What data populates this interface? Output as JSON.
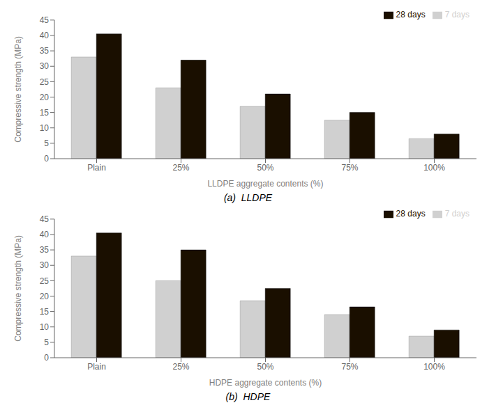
{
  "chart_data": [
    {
      "type": "bar",
      "title": "(a)  LLDPE",
      "categories": [
        "Plain",
        "25%",
        "50%",
        "75%",
        "100%"
      ],
      "series": [
        {
          "name": "7 days",
          "color": "#d0d0d0",
          "values": [
            33,
            23,
            17,
            12.5,
            6.5
          ]
        },
        {
          "name": "28 days",
          "color": "#1a0f00",
          "values": [
            40.5,
            32,
            21,
            15,
            8
          ]
        }
      ],
      "xlabel": "LLDPE aggregate contents (%)",
      "ylabel": "Compressive strength (MPa)",
      "ylim": [
        0,
        45
      ],
      "yticks": [
        0,
        5,
        10,
        15,
        20,
        25,
        30,
        35,
        40,
        45
      ],
      "grid": false,
      "legend": "upper right"
    },
    {
      "type": "bar",
      "title": "(b)  HDPE",
      "categories": [
        "Plain",
        "25%",
        "50%",
        "75%",
        "100%"
      ],
      "series": [
        {
          "name": "7 days",
          "color": "#d0d0d0",
          "values": [
            33,
            25,
            18.5,
            14,
            7
          ]
        },
        {
          "name": "28 days",
          "color": "#1a0f00",
          "values": [
            40.5,
            35,
            22.5,
            16.5,
            9
          ]
        }
      ],
      "xlabel": "HDPE aggregate contents (%)",
      "ylabel": "Compressive strength (MPa)",
      "ylim": [
        0,
        45
      ],
      "yticks": [
        0,
        5,
        10,
        15,
        20,
        25,
        30,
        35,
        40,
        45
      ],
      "grid": false,
      "legend": "upper right"
    }
  ]
}
